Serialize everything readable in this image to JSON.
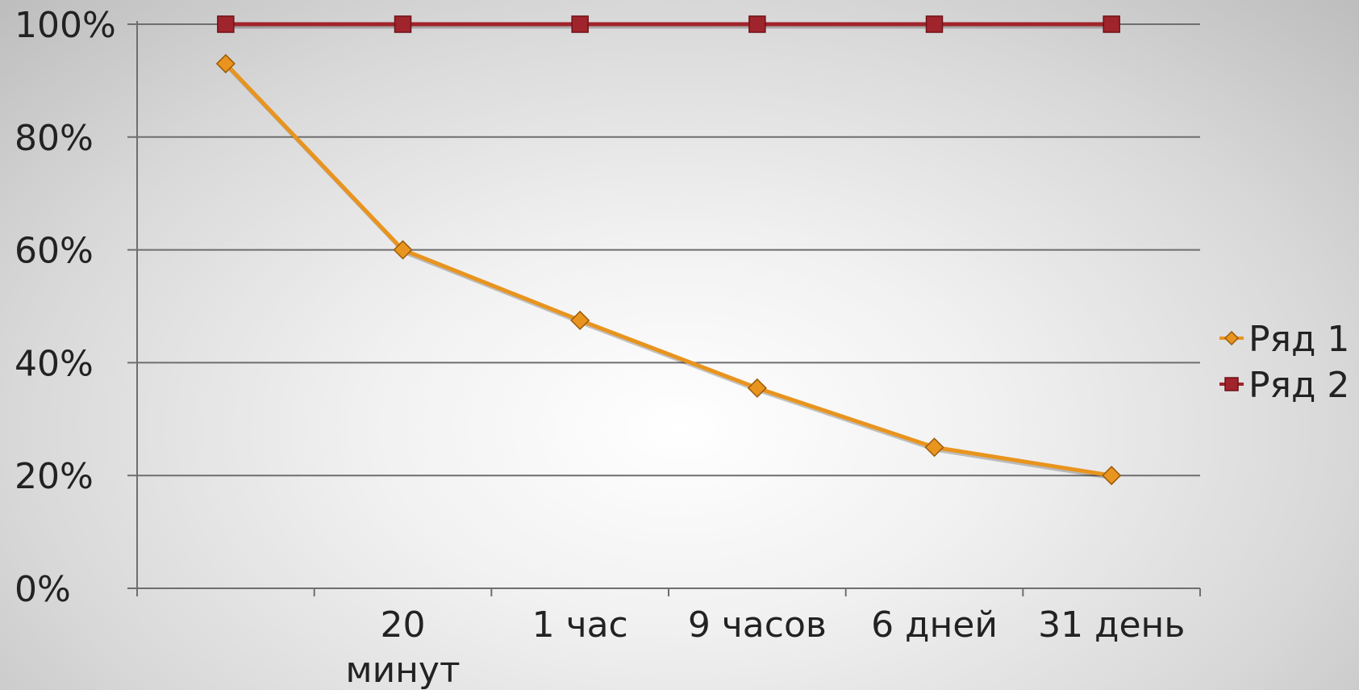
{
  "chart_data": {
    "type": "line",
    "categories": [
      "",
      "20 минут",
      "1 час",
      "9 часов",
      "6 дней",
      "31 день"
    ],
    "category_lines": [
      [
        ""
      ],
      [
        "20",
        "минут"
      ],
      [
        "1 час"
      ],
      [
        "9 часов"
      ],
      [
        "6 дней"
      ],
      [
        "31 день"
      ]
    ],
    "series": [
      {
        "name": "Ряд 1",
        "values": [
          0.93,
          0.6,
          0.475,
          0.355,
          0.25,
          0.2
        ],
        "color": "#E8941E",
        "marker": "diamond"
      },
      {
        "name": "Ряд 2",
        "values": [
          1.0,
          1.0,
          1.0,
          1.0,
          1.0,
          1.0
        ],
        "color": "#A0242C",
        "marker": "square"
      }
    ],
    "ylim": [
      0,
      1
    ],
    "yticks": [
      0,
      0.2,
      0.4,
      0.6,
      0.8,
      1.0
    ],
    "ytick_labels": [
      "0%",
      "20%",
      "40%",
      "60%",
      "80%",
      "100%"
    ],
    "grid": true,
    "legend_position": "right",
    "title": "",
    "xlabel": "",
    "ylabel": ""
  }
}
